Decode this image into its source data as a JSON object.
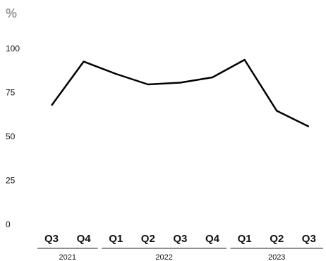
{
  "chart_data": {
    "type": "line",
    "y_unit": "%",
    "groups": [
      {
        "year": "2021",
        "quarters": [
          "Q3",
          "Q4"
        ]
      },
      {
        "year": "2022",
        "quarters": [
          "Q1",
          "Q2",
          "Q3",
          "Q4"
        ]
      },
      {
        "year": "2023",
        "quarters": [
          "Q1",
          "Q2",
          "Q3"
        ]
      }
    ],
    "values": [
      68,
      93,
      86,
      80,
      81,
      84,
      94,
      65,
      56
    ],
    "color": "#000000",
    "ylim": [
      0,
      100
    ],
    "yticks": [
      0,
      25,
      50,
      75,
      100
    ],
    "grid": false
  }
}
